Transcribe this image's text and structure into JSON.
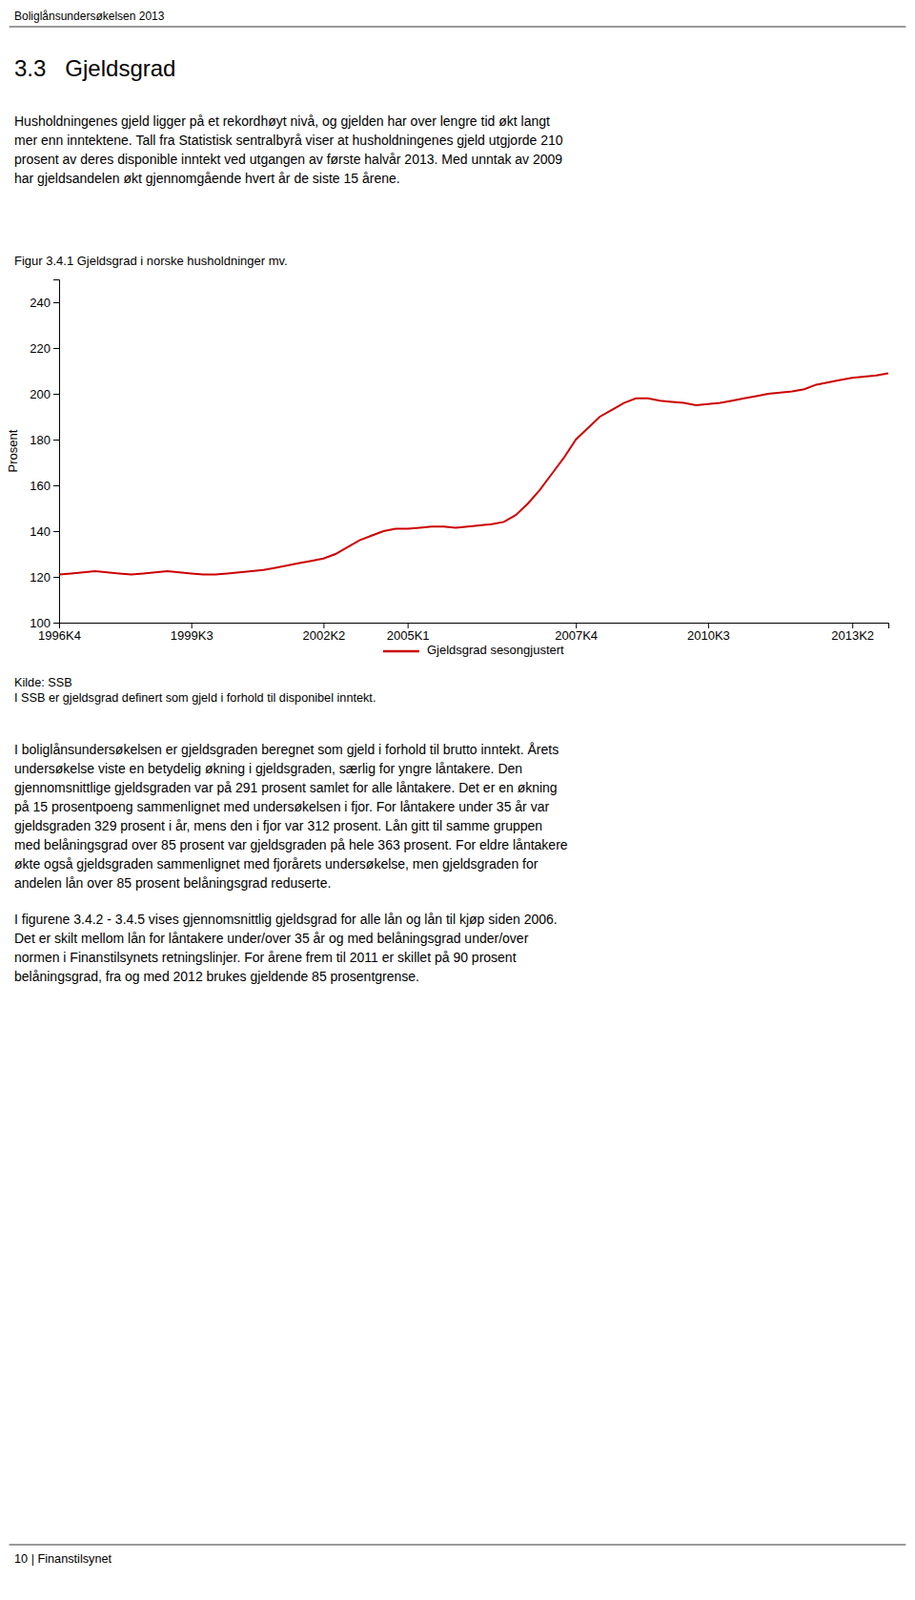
{
  "header": "Boliglånsundersøkelsen 2013",
  "section_title": "3.3   Gjeldsgrad",
  "paragraphs": [
    "Husholdningenes gjeld ligger på et rekordhøyt nivå, og gjelden har over lengre tid økt langt\nmer enn inntektene. Tall fra Statistisk sentralbyrå viser at husholdningenes gjeld utgjorde 210\nprosent av deres disponible inntekt ved utgangen av første halvår 2013. Med unntak av 2009\nhar gjeldsandelen økt gjennomgående hvert år de siste 15 årene.",
    "I boliglånsundersøkelsen er gjeldsgraden beregnet som gjeld i forhold til brutto inntekt. Årets\nundersøkelse viste en betydelig økning i gjeldsgraden, særlig for yngre låntakere. Den\ngjennomsnittlige gjeldsgraden var på 291 prosent samlet for alle låntakere. Det er en økning\npå 15 prosentpoeng sammenlignet med undersøkelsen i fjor. For låntakere under 35 år var\ngjeldsgraden 329 prosent i år, mens den i fjor var 312 prosent. Lån gitt til samme gruppen\nmed belåningsgrad over 85 prosent var gjeldsgraden på hele 363 prosent. For eldre låntakere\nøkte også gjeldsgraden sammenlignet med fjorårets undersøkelse, men gjeldsgraden for\nandelen lån over 85 prosent belåningsgrad reduserte.",
    "I figurene 3.4.2 - 3.4.5 vises gjennomsnittlig gjeldsgrad for alle lån og lån til kjøp siden 2006.\nDet er skilt mellom lån for låntakere under/over 35 år og med belåningsgrad under/over\nnormen i Finanstilsynets retningslinjer. For årene frem til 2011 er skillet på 90 prosent\nbelåningsgrad, fra og med 2012 brukes gjeldende 85 prosentgrense."
  ],
  "notes": [
    "Kilde: SSB",
    "I SSB er gjeldsgrad definert som gjeld i forhold til disponibel inntekt."
  ],
  "footer": "10 | Finanstilsynet",
  "chart_data": {
    "type": "line",
    "title": "Figur 3.4.1 Gjeldsgrad i norske husholdninger mv.",
    "y_label": "Prosent",
    "x": [
      0,
      1,
      2,
      3,
      4,
      5,
      6,
      7,
      8,
      9,
      10,
      11,
      12,
      13,
      14,
      15,
      16,
      17,
      18,
      19,
      20,
      21,
      22,
      23,
      24,
      25,
      26,
      27,
      28,
      29,
      30,
      31,
      32,
      33,
      34,
      35,
      36,
      37,
      38,
      39,
      40,
      41,
      42,
      43,
      44,
      45,
      46,
      47,
      48,
      49,
      50,
      51,
      52,
      53,
      54,
      55,
      56,
      57,
      58,
      59,
      60,
      61,
      62,
      63,
      64,
      65,
      66,
      67,
      68,
      69
    ],
    "series": [
      {
        "name": "Gjeldsgrad sesongjustert",
        "color": "#cc0000",
        "values": [
          121,
          121.5,
          122,
          122.5,
          122,
          121.5,
          121,
          121.5,
          122,
          122.5,
          122,
          121.5,
          121,
          121,
          121.5,
          122,
          122.5,
          123,
          124,
          125,
          126,
          127,
          128,
          130,
          133,
          136,
          138,
          140,
          141,
          141,
          141.5,
          142,
          142,
          141.5,
          142,
          142.5,
          143,
          144,
          147,
          152,
          158,
          165,
          172,
          180,
          185,
          190,
          193,
          196,
          198,
          198,
          197,
          196.5,
          196,
          195,
          195.5,
          196,
          197,
          198,
          199,
          200,
          200.5,
          201,
          202,
          204,
          205,
          206,
          207,
          207.5,
          208,
          209
        ]
      }
    ],
    "xlim": [
      0,
      69
    ],
    "xticks": [
      {
        "value": 0,
        "label": "1996K4"
      },
      {
        "value": 11,
        "label": "1999K3"
      },
      {
        "value": 22,
        "label": "2002K2"
      },
      {
        "value": 29,
        "label": "2005K1"
      },
      {
        "value": 43,
        "label": "2007K4"
      },
      {
        "value": 54,
        "label": "2010K3"
      },
      {
        "value": 66,
        "label": "2013K2"
      }
    ],
    "ylim": [
      100,
      250
    ],
    "yticks": [
      100,
      120,
      140,
      160,
      180,
      200,
      220,
      240
    ],
    "grid": false,
    "legend": "bottom"
  }
}
